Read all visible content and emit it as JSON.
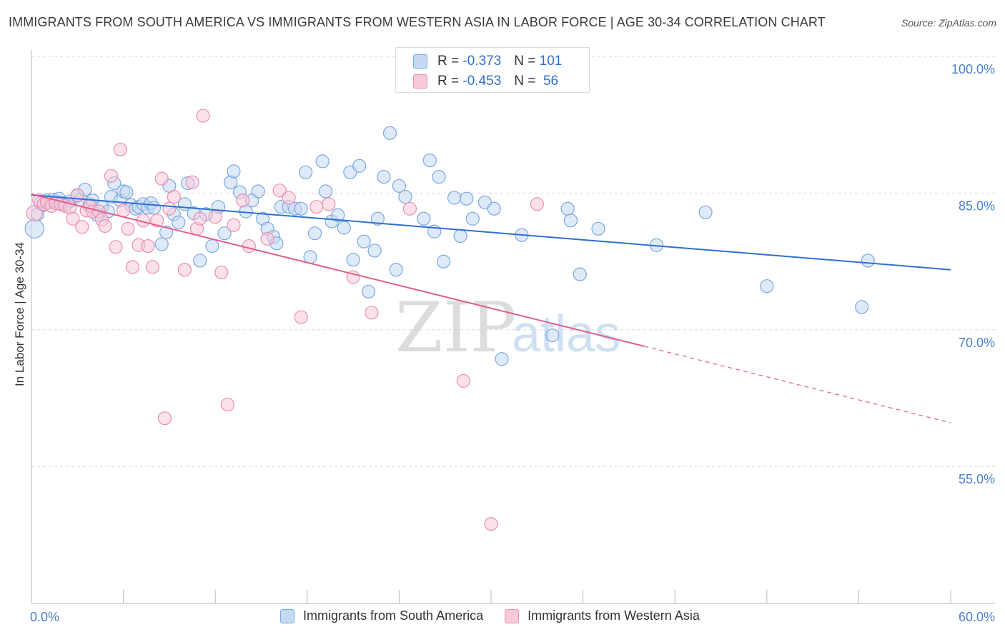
{
  "title": "IMMIGRANTS FROM SOUTH AMERICA VS IMMIGRANTS FROM WESTERN ASIA IN LABOR FORCE | AGE 30-34 CORRELATION CHART",
  "source": "Source: ZipAtlas.com",
  "watermark": {
    "zip": "ZIP",
    "atlas": "atlas"
  },
  "stats": [
    {
      "r_label": "R =",
      "r_value": "-0.373",
      "n_label": "N =",
      "n_value": "101"
    },
    {
      "r_label": "R =",
      "r_value": "-0.453",
      "n_label": "N =",
      "n_value": "56"
    }
  ],
  "chart_data": {
    "type": "scatter",
    "title": "IMMIGRANTS FROM SOUTH AMERICA VS IMMIGRANTS FROM WESTERN ASIA IN LABOR FORCE | AGE 30-34 CORRELATION CHART",
    "xlabel": "",
    "ylabel": "In Labor Force | Age 30-34",
    "xlim": [
      0,
      60
    ],
    "ylim": [
      40,
      102
    ],
    "x_tick_labels": [
      "0.0%",
      "60.0%"
    ],
    "y_ticks": [
      55,
      70,
      85,
      100
    ],
    "y_tick_labels": [
      "55.0%",
      "70.0%",
      "85.0%",
      "100.0%"
    ],
    "grid": "horizontal dashed",
    "legend_position": "bottom",
    "series": [
      {
        "name": "Immigrants from South America",
        "color": "#7ba7e0",
        "fill": "#c5d9f2",
        "trend": {
          "x": [
            0,
            60
          ],
          "y": [
            86.2,
            78.0
          ],
          "color": "#2f6fd0"
        },
        "points": [
          [
            0.2,
            82.5
          ],
          [
            0.4,
            84.1
          ],
          [
            0.6,
            85.3
          ],
          [
            0.8,
            85.1
          ],
          [
            1.0,
            85.6
          ],
          [
            1.2,
            85.4
          ],
          [
            1.4,
            85.7
          ],
          [
            1.6,
            85.5
          ],
          [
            1.8,
            85.8
          ],
          [
            2.0,
            85.3
          ],
          [
            2.2,
            85.2
          ],
          [
            2.5,
            85.5
          ],
          [
            3.0,
            86.1
          ],
          [
            3.2,
            85.7
          ],
          [
            3.5,
            86.8
          ],
          [
            3.8,
            85.2
          ],
          [
            4.0,
            85.6
          ],
          [
            4.3,
            84.0
          ],
          [
            4.6,
            84.9
          ],
          [
            5.0,
            84.4
          ],
          [
            5.2,
            86.0
          ],
          [
            5.4,
            87.5
          ],
          [
            5.8,
            85.6
          ],
          [
            6.0,
            86.6
          ],
          [
            6.2,
            86.5
          ],
          [
            6.5,
            85.1
          ],
          [
            6.8,
            84.7
          ],
          [
            7.0,
            84.9
          ],
          [
            7.3,
            85.2
          ],
          [
            7.6,
            84.8
          ],
          [
            7.8,
            85.3
          ],
          [
            8.0,
            84.8
          ],
          [
            8.5,
            80.8
          ],
          [
            8.8,
            82.1
          ],
          [
            9.0,
            87.2
          ],
          [
            9.3,
            84.1
          ],
          [
            9.6,
            83.2
          ],
          [
            10.0,
            85.2
          ],
          [
            10.2,
            87.5
          ],
          [
            10.6,
            84.2
          ],
          [
            11.0,
            79.0
          ],
          [
            11.4,
            84.1
          ],
          [
            11.8,
            80.6
          ],
          [
            12.2,
            84.9
          ],
          [
            12.6,
            82.0
          ],
          [
            13.0,
            87.6
          ],
          [
            13.2,
            88.8
          ],
          [
            13.6,
            86.5
          ],
          [
            14.0,
            84.4
          ],
          [
            14.4,
            85.6
          ],
          [
            14.8,
            86.6
          ],
          [
            15.1,
            83.6
          ],
          [
            15.4,
            82.5
          ],
          [
            15.8,
            81.6
          ],
          [
            16.0,
            80.9
          ],
          [
            16.3,
            84.9
          ],
          [
            16.8,
            84.9
          ],
          [
            17.2,
            84.7
          ],
          [
            17.6,
            84.7
          ],
          [
            17.9,
            88.7
          ],
          [
            18.2,
            79.4
          ],
          [
            18.5,
            82.0
          ],
          [
            19.0,
            89.9
          ],
          [
            19.2,
            86.6
          ],
          [
            19.6,
            83.3
          ],
          [
            20.0,
            84.0
          ],
          [
            20.4,
            82.6
          ],
          [
            20.8,
            88.7
          ],
          [
            21.0,
            79.1
          ],
          [
            21.4,
            89.4
          ],
          [
            21.7,
            81.1
          ],
          [
            22.0,
            75.6
          ],
          [
            22.4,
            80.1
          ],
          [
            22.6,
            83.6
          ],
          [
            23.0,
            88.2
          ],
          [
            23.4,
            93.0
          ],
          [
            23.8,
            78.0
          ],
          [
            24.0,
            87.2
          ],
          [
            24.4,
            86.0
          ],
          [
            25.0,
            99.8
          ],
          [
            25.6,
            83.6
          ],
          [
            26.0,
            90.0
          ],
          [
            26.3,
            82.2
          ],
          [
            26.6,
            88.2
          ],
          [
            26.9,
            78.9
          ],
          [
            27.6,
            85.9
          ],
          [
            28.0,
            81.7
          ],
          [
            28.4,
            85.8
          ],
          [
            28.8,
            83.6
          ],
          [
            29.6,
            85.4
          ],
          [
            30.2,
            84.7
          ],
          [
            32.0,
            81.8
          ],
          [
            34.0,
            70.8
          ],
          [
            35.0,
            84.7
          ],
          [
            35.2,
            83.4
          ],
          [
            35.8,
            77.5
          ],
          [
            37.0,
            82.5
          ],
          [
            30.7,
            68.2
          ],
          [
            40.8,
            80.7
          ],
          [
            44.0,
            84.3
          ],
          [
            48.0,
            76.2
          ],
          [
            54.2,
            73.9
          ],
          [
            54.6,
            79.0
          ]
        ]
      },
      {
        "name": "Immigrants from Western Asia",
        "color": "#eb8fb1",
        "fill": "#f8c9d9",
        "trend": {
          "x": [
            0,
            40
          ],
          "y": [
            86.3,
            69.6
          ],
          "color": "#e0608e"
        },
        "trend_extension": {
          "x": [
            40,
            60
          ],
          "y": [
            69.6,
            61.2
          ]
        },
        "points": [
          [
            0.2,
            84.2
          ],
          [
            0.5,
            85.6
          ],
          [
            0.8,
            85.2
          ],
          [
            1.0,
            85.4
          ],
          [
            1.3,
            85.0
          ],
          [
            1.6,
            85.3
          ],
          [
            1.9,
            85.2
          ],
          [
            2.2,
            85.0
          ],
          [
            2.5,
            84.8
          ],
          [
            2.7,
            83.6
          ],
          [
            3.0,
            86.2
          ],
          [
            3.3,
            82.7
          ],
          [
            3.6,
            84.5
          ],
          [
            3.8,
            85.0
          ],
          [
            4.0,
            84.4
          ],
          [
            4.4,
            84.4
          ],
          [
            4.6,
            83.5
          ],
          [
            4.8,
            82.8
          ],
          [
            5.2,
            88.3
          ],
          [
            5.5,
            80.5
          ],
          [
            5.8,
            91.2
          ],
          [
            6.0,
            84.5
          ],
          [
            6.3,
            82.5
          ],
          [
            6.6,
            78.3
          ],
          [
            7.0,
            80.7
          ],
          [
            7.3,
            83.4
          ],
          [
            7.6,
            80.6
          ],
          [
            7.9,
            78.3
          ],
          [
            8.2,
            83.4
          ],
          [
            8.5,
            88.0
          ],
          [
            9.0,
            84.7
          ],
          [
            9.3,
            86.0
          ],
          [
            10.0,
            78.0
          ],
          [
            10.5,
            87.6
          ],
          [
            10.8,
            82.5
          ],
          [
            11.0,
            83.6
          ],
          [
            11.2,
            94.9
          ],
          [
            12.0,
            83.8
          ],
          [
            12.4,
            77.7
          ],
          [
            12.8,
            63.2
          ],
          [
            13.2,
            82.9
          ],
          [
            13.8,
            85.6
          ],
          [
            14.2,
            80.6
          ],
          [
            15.4,
            81.4
          ],
          [
            16.2,
            86.7
          ],
          [
            16.8,
            85.9
          ],
          [
            17.6,
            72.8
          ],
          [
            18.6,
            84.9
          ],
          [
            19.4,
            85.2
          ],
          [
            21.0,
            77.2
          ],
          [
            22.2,
            73.3
          ],
          [
            24.7,
            84.7
          ],
          [
            28.2,
            65.8
          ],
          [
            33.0,
            85.2
          ],
          [
            30.0,
            50.1
          ],
          [
            8.7,
            61.7
          ]
        ]
      }
    ]
  }
}
